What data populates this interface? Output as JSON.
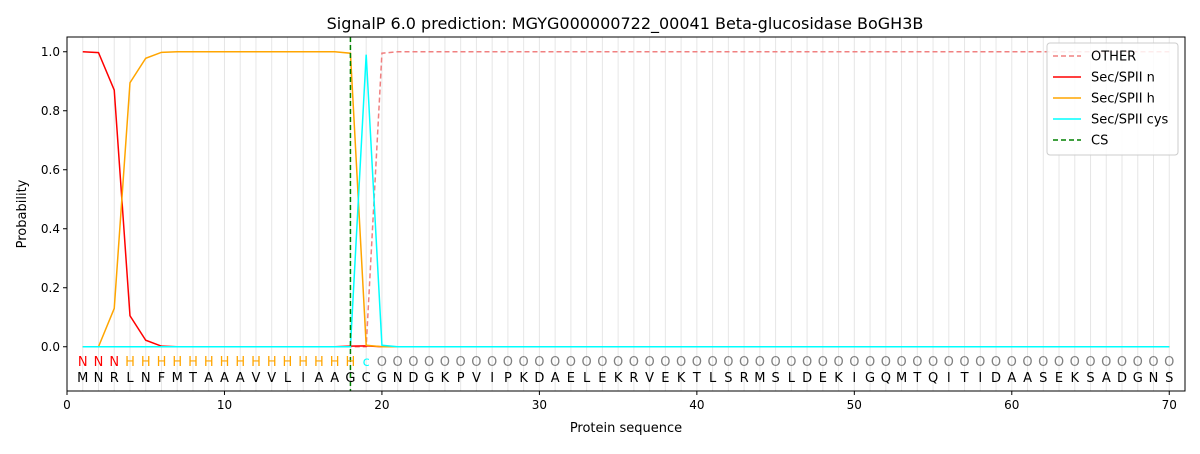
{
  "chart_data": {
    "type": "line",
    "title": "SignalP 6.0 prediction: MGYG000000722_00041 Beta-glucosidase BoGH3B",
    "xlabel": "Protein sequence",
    "ylabel": "Probability",
    "xlim": [
      0,
      71
    ],
    "ylim": [
      -0.15,
      1.05
    ],
    "xticks": [
      0,
      10,
      20,
      30,
      40,
      50,
      60,
      70
    ],
    "yticks": [
      0.0,
      0.2,
      0.4,
      0.6,
      0.8,
      1.0
    ],
    "xtick_labels": [
      "0",
      "10",
      "20",
      "30",
      "40",
      "50",
      "60",
      "70"
    ],
    "ytick_labels": [
      "0.0",
      "0.2",
      "0.4",
      "0.6",
      "0.8",
      "1.0"
    ],
    "grid": "vertical lines at each residue",
    "legend_position": "top-right",
    "sequence": [
      "M",
      "N",
      "R",
      "L",
      "N",
      "F",
      "M",
      "T",
      "A",
      "A",
      "A",
      "V",
      "V",
      "L",
      "I",
      "A",
      "A",
      "G",
      "C",
      "G",
      "N",
      "D",
      "G",
      "K",
      "P",
      "V",
      "I",
      "P",
      "K",
      "D",
      "A",
      "E",
      "L",
      "E",
      "K",
      "R",
      "V",
      "E",
      "K",
      "T",
      "L",
      "S",
      "R",
      "M",
      "S",
      "L",
      "D",
      "E",
      "K",
      "I",
      "G",
      "Q",
      "M",
      "T",
      "Q",
      "I",
      "T",
      "I",
      "D",
      "A",
      "A",
      "S",
      "E",
      "K",
      "S",
      "A",
      "D",
      "G",
      "N",
      "S"
    ],
    "predicted_labels": [
      "N",
      "N",
      "N",
      "H",
      "H",
      "H",
      "H",
      "H",
      "H",
      "H",
      "H",
      "H",
      "H",
      "H",
      "H",
      "H",
      "H",
      "H",
      "c",
      "O",
      "O",
      "O",
      "O",
      "O",
      "O",
      "O",
      "O",
      "O",
      "O",
      "O",
      "O",
      "O",
      "O",
      "O",
      "O",
      "O",
      "O",
      "O",
      "O",
      "O",
      "O",
      "O",
      "O",
      "O",
      "O",
      "O",
      "O",
      "O",
      "O",
      "O",
      "O",
      "O",
      "O",
      "O",
      "O",
      "O",
      "O",
      "O",
      "O",
      "O",
      "O",
      "O",
      "O",
      "O",
      "O",
      "O",
      "O",
      "O",
      "O",
      "O"
    ],
    "label_colors": {
      "N": "#ff0000",
      "H": "#ffa500",
      "c": "#00ffff",
      "O": "#808080"
    },
    "series": [
      {
        "name": "OTHER",
        "color": "#f08080",
        "style": "dashed",
        "values": [
          0,
          0,
          0,
          0,
          0,
          0,
          0,
          0,
          0,
          0,
          0,
          0,
          0,
          0,
          0,
          0,
          0,
          0,
          0,
          0.995,
          1,
          1,
          1,
          1,
          1,
          1,
          1,
          1,
          1,
          1,
          1,
          1,
          1,
          1,
          1,
          1,
          1,
          1,
          1,
          1,
          1,
          1,
          1,
          1,
          1,
          1,
          1,
          1,
          1,
          1,
          1,
          1,
          1,
          1,
          1,
          1,
          1,
          1,
          1,
          1,
          1,
          1,
          1,
          1,
          1,
          1,
          1,
          1,
          1,
          1
        ]
      },
      {
        "name": "Sec/SPII n",
        "color": "#ff0000",
        "style": "solid",
        "values": [
          1.0,
          0.997,
          0.87,
          0.105,
          0.022,
          0.002,
          0,
          0,
          0,
          0,
          0,
          0,
          0,
          0,
          0,
          0,
          0,
          0.002,
          0.003,
          0,
          0,
          0,
          0,
          0,
          0,
          0,
          0,
          0,
          0,
          0,
          0,
          0,
          0,
          0,
          0,
          0,
          0,
          0,
          0,
          0,
          0,
          0,
          0,
          0,
          0,
          0,
          0,
          0,
          0,
          0,
          0,
          0,
          0,
          0,
          0,
          0,
          0,
          0,
          0,
          0,
          0,
          0,
          0,
          0,
          0,
          0,
          0,
          0,
          0,
          0
        ]
      },
      {
        "name": "Sec/SPII h",
        "color": "#ffa500",
        "style": "solid",
        "values": [
          0,
          0,
          0.13,
          0.895,
          0.978,
          0.998,
          1,
          1,
          1,
          1,
          1,
          1,
          1,
          1,
          1,
          1,
          1,
          0.995,
          0.005,
          0,
          0,
          0,
          0,
          0,
          0,
          0,
          0,
          0,
          0,
          0,
          0,
          0,
          0,
          0,
          0,
          0,
          0,
          0,
          0,
          0,
          0,
          0,
          0,
          0,
          0,
          0,
          0,
          0,
          0,
          0,
          0,
          0,
          0,
          0,
          0,
          0,
          0,
          0,
          0,
          0,
          0,
          0,
          0,
          0,
          0,
          0,
          0,
          0,
          0,
          0
        ]
      },
      {
        "name": "Sec/SPII cys",
        "color": "#00ffff",
        "style": "solid",
        "values": [
          0,
          0,
          0,
          0,
          0,
          0,
          0,
          0,
          0,
          0,
          0,
          0,
          0,
          0,
          0,
          0,
          0,
          0,
          0.99,
          0.005,
          0,
          0,
          0,
          0,
          0,
          0,
          0,
          0,
          0,
          0,
          0,
          0,
          0,
          0,
          0,
          0,
          0,
          0,
          0,
          0,
          0,
          0,
          0,
          0,
          0,
          0,
          0,
          0,
          0,
          0,
          0,
          0,
          0,
          0,
          0,
          0,
          0,
          0,
          0,
          0,
          0,
          0,
          0,
          0,
          0,
          0,
          0,
          0,
          0,
          0
        ]
      }
    ],
    "cs": {
      "name": "CS",
      "color": "#008000",
      "style": "dashed",
      "x": 18
    }
  }
}
